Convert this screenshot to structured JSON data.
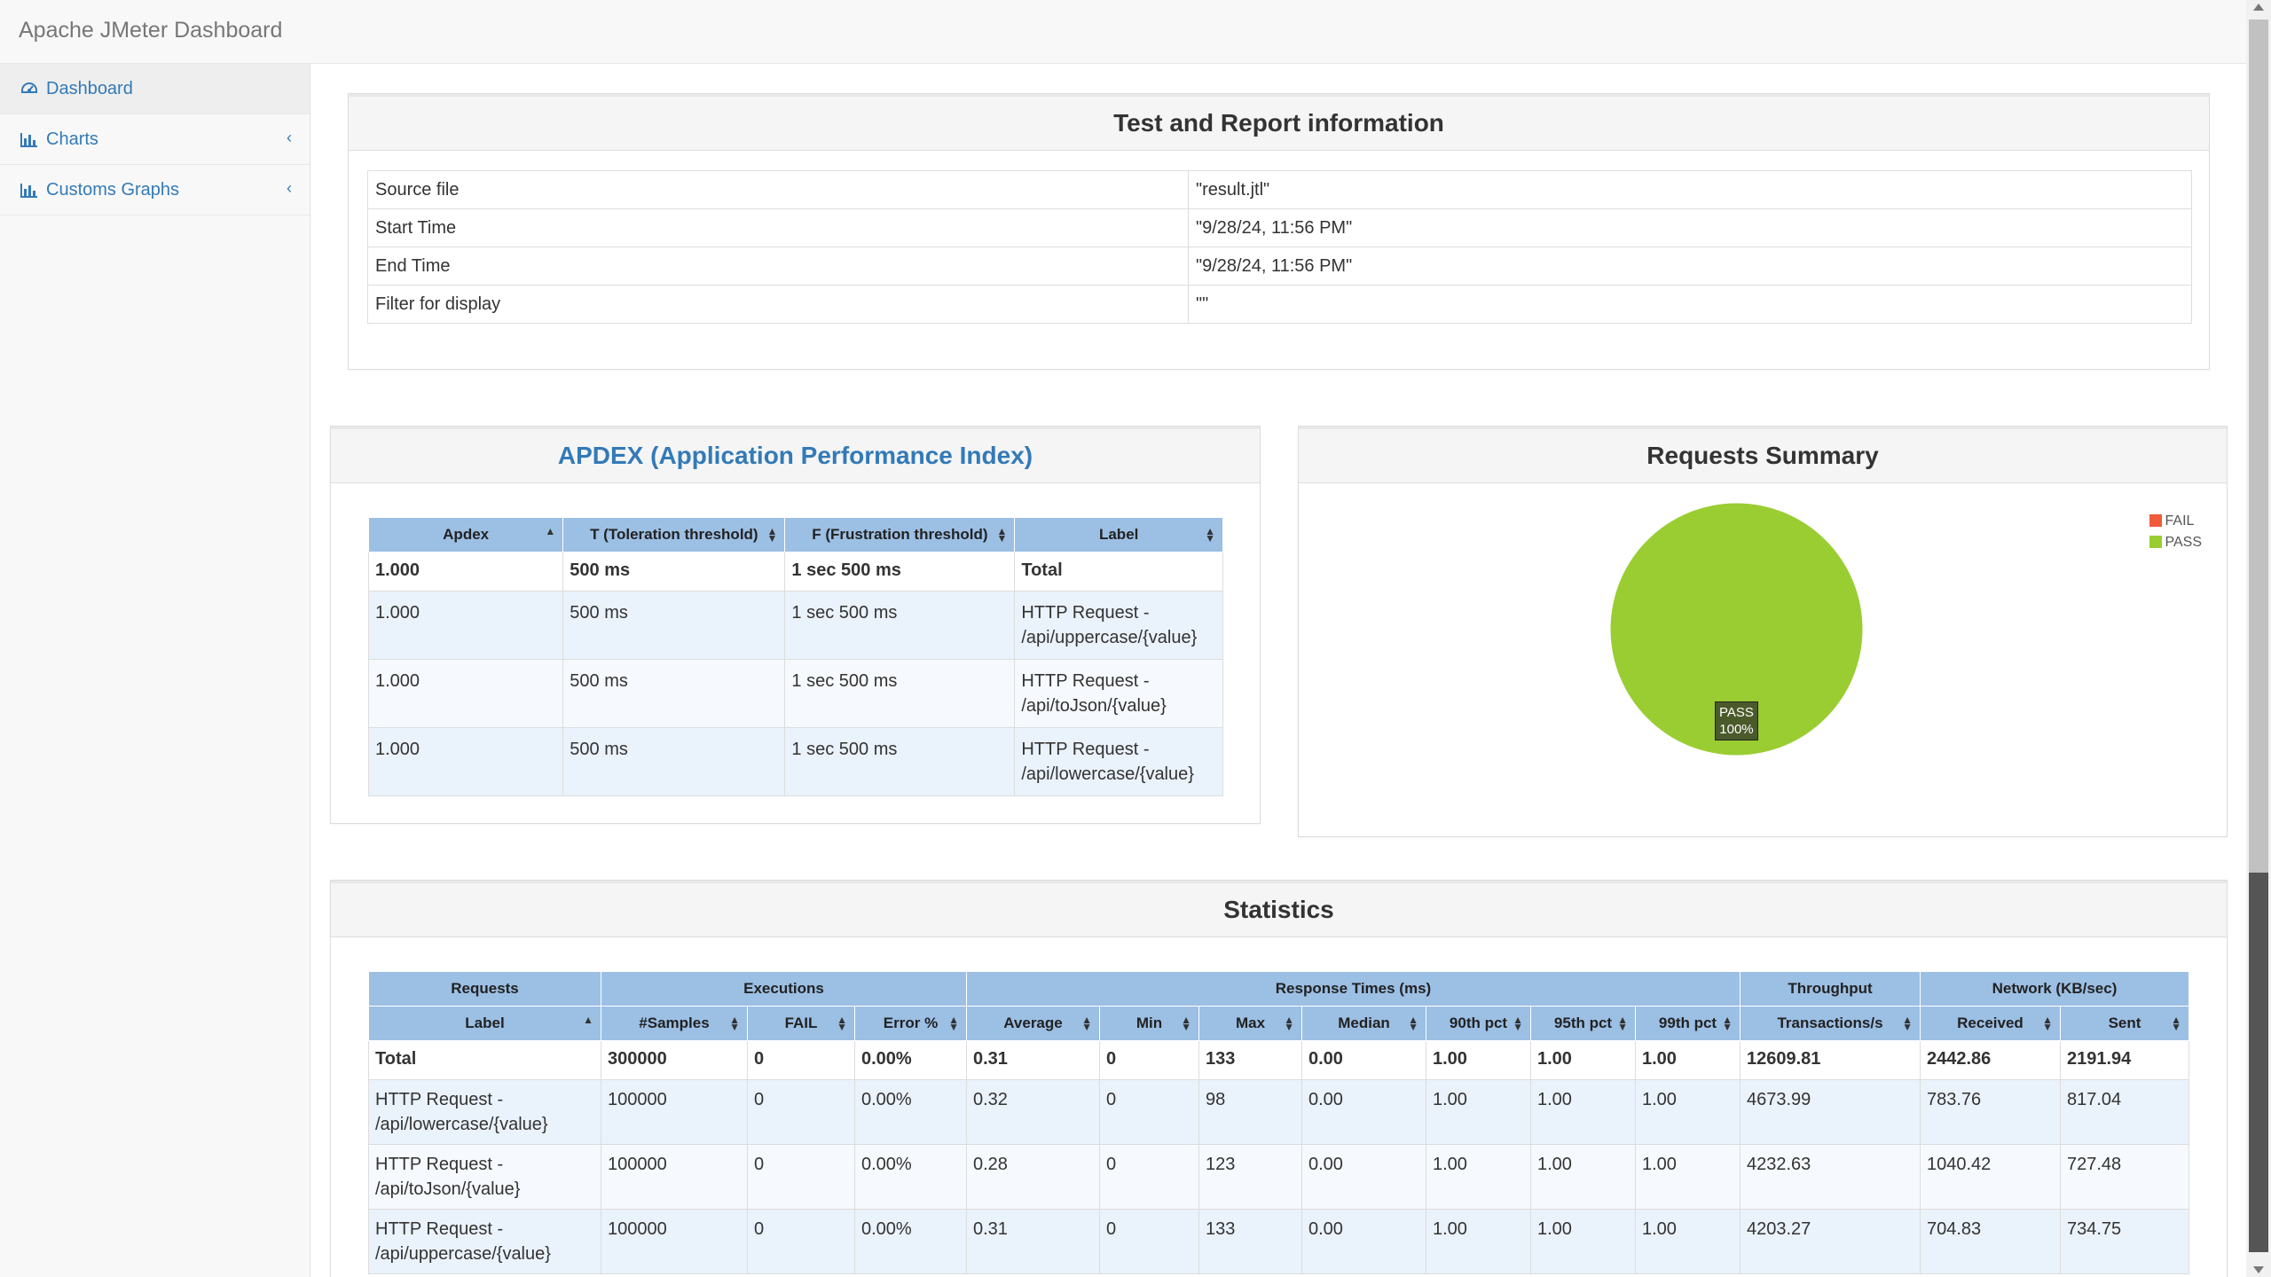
{
  "brand": "Apache JMeter Dashboard",
  "sidebar": {
    "items": [
      {
        "label": "Dashboard",
        "icon": "dashboard-icon"
      },
      {
        "label": "Charts",
        "icon": "bar-chart-icon"
      },
      {
        "label": "Customs Graphs",
        "icon": "bar-chart-icon"
      }
    ]
  },
  "info": {
    "title": "Test and Report information",
    "rows": [
      {
        "k": "Source file",
        "v": "\"result.jtl\""
      },
      {
        "k": "Start Time",
        "v": "\"9/28/24, 11:56 PM\""
      },
      {
        "k": "End Time",
        "v": "\"9/28/24, 11:56 PM\""
      },
      {
        "k": "Filter for display",
        "v": "\"\""
      }
    ]
  },
  "apdex": {
    "title": "APDEX (Application Performance Index)",
    "headers": [
      "Apdex",
      "T (Toleration threshold)",
      "F (Frustration threshold)",
      "Label"
    ],
    "rows": [
      [
        "1.000",
        "500 ms",
        "1 sec 500 ms",
        "Total"
      ],
      [
        "1.000",
        "500 ms",
        "1 sec 500 ms",
        "HTTP Request - /api/uppercase/{value}"
      ],
      [
        "1.000",
        "500 ms",
        "1 sec 500 ms",
        "HTTP Request - /api/toJson/{value}"
      ],
      [
        "1.000",
        "500 ms",
        "1 sec 500 ms",
        "HTTP Request - /api/lowercase/{value}"
      ]
    ]
  },
  "summary": {
    "title": "Requests Summary",
    "legend": [
      {
        "label": "FAIL",
        "color": "#f15a3a"
      },
      {
        "label": "PASS",
        "color": "#9acd32"
      }
    ],
    "pie_label_name": "PASS",
    "pie_label_value": "100%"
  },
  "chart_data": {
    "type": "pie",
    "categories": [
      "FAIL",
      "PASS"
    ],
    "values": [
      0,
      100
    ],
    "colors": [
      "#f15a3a",
      "#9acd32"
    ],
    "title": "Requests Summary",
    "legend": "top-right"
  },
  "stats": {
    "title": "Statistics",
    "groups": [
      "Requests",
      "Executions",
      "Response Times (ms)",
      "Throughput",
      "Network (KB/sec)"
    ],
    "headers": [
      "Label",
      "#Samples",
      "FAIL",
      "Error %",
      "Average",
      "Min",
      "Max",
      "Median",
      "90th pct",
      "95th pct",
      "99th pct",
      "Transactions/s",
      "Received",
      "Sent"
    ],
    "rows": [
      [
        "Total",
        "300000",
        "0",
        "0.00%",
        "0.31",
        "0",
        "133",
        "0.00",
        "1.00",
        "1.00",
        "1.00",
        "12609.81",
        "2442.86",
        "2191.94"
      ],
      [
        "HTTP Request - /api/lowercase/{value}",
        "100000",
        "0",
        "0.00%",
        "0.32",
        "0",
        "98",
        "0.00",
        "1.00",
        "1.00",
        "1.00",
        "4673.99",
        "783.76",
        "817.04"
      ],
      [
        "HTTP Request - /api/toJson/{value}",
        "100000",
        "0",
        "0.00%",
        "0.28",
        "0",
        "123",
        "0.00",
        "1.00",
        "1.00",
        "1.00",
        "4232.63",
        "1040.42",
        "727.48"
      ],
      [
        "HTTP Request - /api/uppercase/{value}",
        "100000",
        "0",
        "0.00%",
        "0.31",
        "0",
        "133",
        "0.00",
        "1.00",
        "1.00",
        "1.00",
        "4203.27",
        "704.83",
        "734.75"
      ]
    ]
  }
}
